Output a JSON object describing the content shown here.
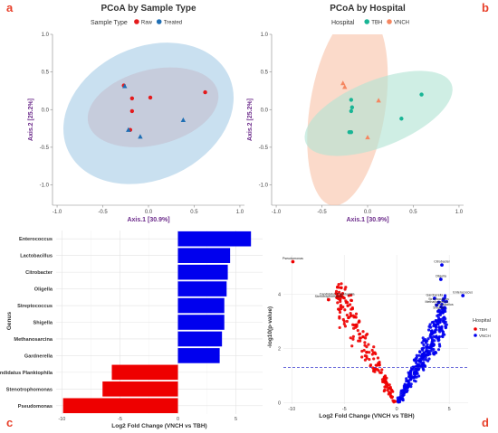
{
  "panel_letters": [
    "a",
    "b",
    "c",
    "d"
  ],
  "chart_data": [
    {
      "type": "scatter",
      "title": "PCoA by Sample Type",
      "xlabel": "Axis.1   [30.9%]",
      "ylabel": "Axis.2   [25.2%]",
      "xlim": [
        -1.05,
        1.05
      ],
      "ylim": [
        -1.27,
        1.0
      ],
      "xticks": [
        -1.0,
        -0.5,
        0.0,
        0.5,
        1.0
      ],
      "yticks": [
        -1.0,
        -0.5,
        0.0,
        0.5,
        1.0
      ],
      "tick_labels_x": [
        "-1.0",
        "-0.5",
        "0.0",
        "0.5",
        "1.0"
      ],
      "tick_labels_y": [
        "-1.0",
        "-0.5",
        "0.0",
        "0.5",
        "1.0"
      ],
      "legend": {
        "title": "Sample Type",
        "placement": "top"
      },
      "grid": false,
      "series": [
        {
          "name": "Raw",
          "color": "#e41a1c",
          "shape": "circle",
          "points": [
            [
              -0.27,
              0.32
            ],
            [
              -0.18,
              0.15
            ],
            [
              -0.18,
              -0.02
            ],
            [
              -0.2,
              -0.27
            ],
            [
              0.02,
              0.16
            ],
            [
              0.62,
              0.23
            ]
          ]
        },
        {
          "name": "Treated",
          "color": "#1f6fb4",
          "shape": "triangle",
          "points": [
            [
              -0.26,
              0.31
            ],
            [
              -0.22,
              -0.27
            ],
            [
              -0.09,
              -0.36
            ],
            [
              0.38,
              -0.14
            ]
          ]
        }
      ],
      "ellipses": [
        {
          "series": "Raw",
          "fill": "#f2a9a9",
          "cx": 0.05,
          "cy": 0.03,
          "rx": 0.73,
          "ry": 0.5,
          "angle": 14
        },
        {
          "series": "Treated",
          "fill": "#a8cde6",
          "cx": 0.0,
          "cy": -0.05,
          "rx": 0.97,
          "ry": 0.88,
          "angle": 25
        }
      ]
    },
    {
      "type": "scatter",
      "title": "PCoA by Hospital",
      "xlabel": "Axis.1   [30.9%]",
      "ylabel": "Axis.2   [25.2%]",
      "xlim": [
        -1.05,
        1.05
      ],
      "ylim": [
        -1.27,
        1.0
      ],
      "xticks": [
        -1.0,
        -0.5,
        0.0,
        0.5,
        1.0
      ],
      "yticks": [
        -1.0,
        -0.5,
        0.0,
        0.5,
        1.0
      ],
      "tick_labels_x": [
        "-1.0",
        "-0.5",
        "0.0",
        "0.5",
        "1.0"
      ],
      "tick_labels_y": [
        "-1.0",
        "-0.5",
        "0.0",
        "0.5",
        "1.0"
      ],
      "legend": {
        "title": "Hospital",
        "placement": "top"
      },
      "grid": false,
      "series": [
        {
          "name": "TBH",
          "color": "#19b595",
          "shape": "circle",
          "points": [
            [
              -0.18,
              0.13
            ],
            [
              -0.17,
              0.03
            ],
            [
              -0.18,
              -0.02
            ],
            [
              -0.2,
              -0.3
            ],
            [
              -0.18,
              -0.3
            ],
            [
              0.37,
              -0.12
            ],
            [
              0.59,
              0.2
            ]
          ]
        },
        {
          "name": "VNCH",
          "color": "#f58660",
          "shape": "triangle",
          "points": [
            [
              -0.27,
              0.35
            ],
            [
              -0.25,
              0.3
            ],
            [
              0.12,
              0.12
            ],
            [
              0.0,
              -0.37
            ]
          ]
        }
      ],
      "ellipses": [
        {
          "series": "VNCH",
          "fill": "#f9c4aa",
          "cx": -0.22,
          "cy": 0.02,
          "rx": 1.08,
          "ry": 0.5,
          "angle": 81
        },
        {
          "series": "TBH",
          "fill": "#b1e3d3",
          "cx": 0.12,
          "cy": -0.05,
          "rx": 0.86,
          "ry": 0.44,
          "angle": 22
        }
      ]
    },
    {
      "type": "bar",
      "orientation": "horizontal",
      "xlabel": "Log2 Fold Change (VNCH vs TBH)",
      "ylabel": "Genus",
      "xlim": [
        -10.5,
        7.3
      ],
      "xticks": [
        -10,
        -5,
        0,
        5
      ],
      "tick_labels_x": [
        "-10",
        "-5",
        "0",
        "5"
      ],
      "grid": true,
      "categories": [
        "Enterococcus",
        "Lactobacillus",
        "Citrobacter",
        "Oligella",
        "Streptococcus",
        "Shigella",
        "Methanosarcina",
        "Gardnerella",
        "Candidatus Planktophila",
        "Stenotrophomonas",
        "Pseudomonas"
      ],
      "values": [
        6.3,
        4.5,
        4.3,
        4.2,
        4.0,
        4.0,
        3.8,
        3.6,
        -5.7,
        -6.5,
        -9.9
      ],
      "colors": {
        "positive": "#0000ee",
        "negative": "#ee0000"
      }
    },
    {
      "type": "scatter",
      "subtype": "volcano",
      "xlabel": "Log2 Fold Change (VNCH vs TBH)",
      "ylabel": "-log10(p-value)",
      "xlim": [
        -10.8,
        6.8
      ],
      "ylim": [
        -0.05,
        5.45
      ],
      "xticks": [
        -10,
        -5,
        0,
        5
      ],
      "yticks": [
        0,
        2,
        4
      ],
      "tick_labels_x": [
        "-10",
        "-5",
        "0",
        "5"
      ],
      "tick_labels_y": [
        "0",
        "2",
        "4"
      ],
      "threshold_y": 1.3,
      "legend": {
        "title": "Hospital",
        "placement": "right"
      },
      "grid": true,
      "series": [
        {
          "name": "TBH",
          "color": "#ee0000"
        },
        {
          "name": "VNCH",
          "color": "#0000ee"
        }
      ],
      "labeled_points": [
        {
          "label": "Pseudomonas",
          "x": -9.9,
          "y": 5.2,
          "series": "TBH"
        },
        {
          "label": "Candidatus Planktophila",
          "x": -5.7,
          "y": 3.88,
          "series": "TBH"
        },
        {
          "label": "Stenotrophomonas",
          "x": -6.5,
          "y": 3.8,
          "series": "TBH"
        },
        {
          "label": "Citrobacter",
          "x": 4.3,
          "y": 5.08,
          "series": "VNCH"
        },
        {
          "label": "Oligella",
          "x": 4.2,
          "y": 4.55,
          "series": "VNCH"
        },
        {
          "label": "Enterococcus",
          "x": 6.3,
          "y": 3.95,
          "series": "VNCH"
        },
        {
          "label": "Gardnerella",
          "x": 3.6,
          "y": 3.85,
          "series": "VNCH"
        },
        {
          "label": "Streptococcus",
          "x": 4.0,
          "y": 3.7,
          "series": "VNCH"
        },
        {
          "label": "Methanosarcina",
          "x": 3.8,
          "y": 3.6,
          "series": "VNCH"
        },
        {
          "label": "Lactobacillus",
          "x": 4.5,
          "y": 3.5,
          "series": "VNCH"
        },
        {
          "label": "Shigella",
          "x": 4.0,
          "y": 3.38,
          "series": "VNCH"
        }
      ]
    }
  ]
}
